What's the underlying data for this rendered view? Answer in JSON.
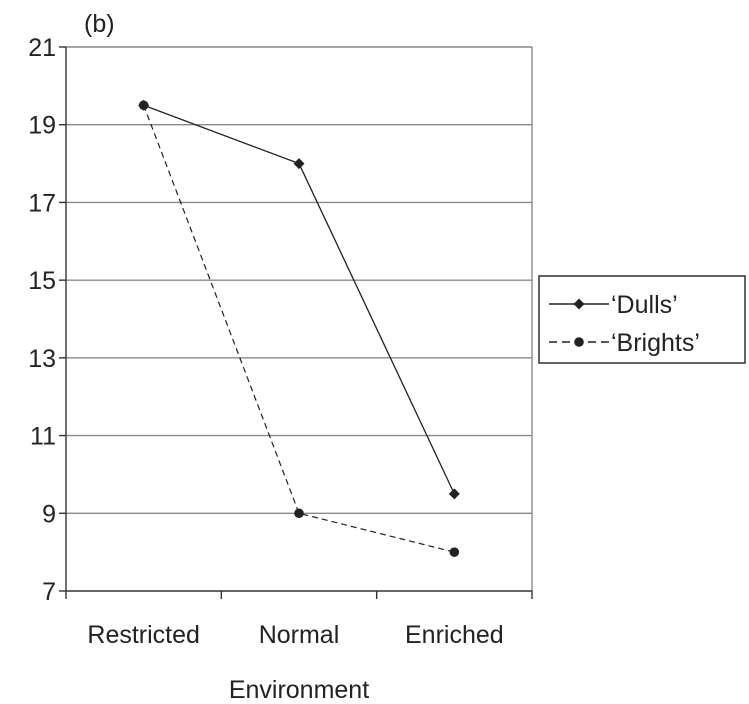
{
  "chart_data": {
    "type": "line",
    "panel_label": "(b)",
    "title": "",
    "xlabel": "Environment",
    "ylabel": "",
    "categories": [
      "Restricted",
      "Normal",
      "Enriched"
    ],
    "ylim": [
      7,
      21
    ],
    "yticks": [
      7,
      9,
      11,
      13,
      15,
      17,
      19,
      21
    ],
    "grid": true,
    "legend_position": "right",
    "series": [
      {
        "name": "‘Dulls’",
        "values": [
          19.5,
          18,
          9.5
        ],
        "line_style": "solid",
        "marker": "diamond",
        "color": "#222222"
      },
      {
        "name": "‘Brights’",
        "values": [
          19.5,
          9,
          8
        ],
        "line_style": "dashed",
        "marker": "circle",
        "color": "#222222"
      }
    ]
  }
}
